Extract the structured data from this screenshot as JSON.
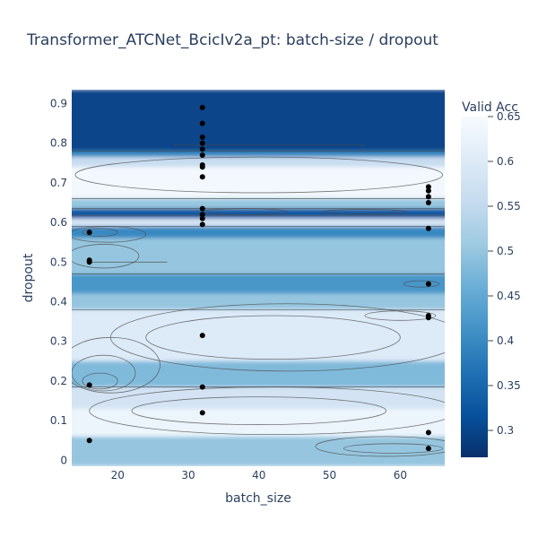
{
  "chart_data": {
    "type": "heatmap",
    "subtype": "contour",
    "title": "Transformer_ATCNet_BcicIv2a_pt: batch-size / dropout",
    "xlabel": "batch_size",
    "ylabel": "dropout",
    "xlim": [
      13.5,
      66.3
    ],
    "ylim": [
      -0.015,
      0.935
    ],
    "x_ticks": [
      20,
      30,
      40,
      50,
      60
    ],
    "x_tick_labels": [
      "20",
      "30",
      "40",
      "50",
      "60"
    ],
    "y_ticks": [
      0,
      0.1,
      0.2,
      0.3,
      0.4,
      0.5,
      0.6,
      0.7,
      0.8,
      0.9
    ],
    "y_tick_labels": [
      "0",
      "0.1",
      "0.2",
      "0.3",
      "0.4",
      "0.5",
      "0.6",
      "0.7",
      "0.8",
      "0.9"
    ],
    "colorbar": {
      "title": "Valid Acc",
      "range": [
        0.27,
        0.65
      ],
      "ticks": [
        0.3,
        0.35,
        0.4,
        0.45,
        0.5,
        0.55,
        0.6,
        0.65
      ],
      "tick_labels": [
        "0.3",
        "0.35",
        "0.4",
        "0.45",
        "0.5",
        "0.55",
        "0.6",
        "0.65"
      ],
      "colorscale": "Blues"
    },
    "bands": [
      {
        "y0": 0.78,
        "y1": 0.935,
        "value": 0.3
      },
      {
        "y0": 0.765,
        "y1": 0.78,
        "value": 0.4
      },
      {
        "y0": 0.74,
        "y1": 0.765,
        "value": 0.56
      },
      {
        "y0": 0.66,
        "y1": 0.74,
        "value": 0.64
      },
      {
        "y0": 0.635,
        "y1": 0.66,
        "value": 0.5
      },
      {
        "y0": 0.61,
        "y1": 0.635,
        "value": 0.33
      },
      {
        "y0": 0.59,
        "y1": 0.61,
        "value": 0.58
      },
      {
        "y0": 0.56,
        "y1": 0.59,
        "value": 0.4
      },
      {
        "y0": 0.47,
        "y1": 0.56,
        "value": 0.5
      },
      {
        "y0": 0.42,
        "y1": 0.47,
        "value": 0.42
      },
      {
        "y0": 0.38,
        "y1": 0.42,
        "value": 0.5
      },
      {
        "y0": 0.25,
        "y1": 0.38,
        "value": 0.6
      },
      {
        "y0": 0.185,
        "y1": 0.25,
        "value": 0.48
      },
      {
        "y0": 0.13,
        "y1": 0.185,
        "value": 0.58
      },
      {
        "y0": 0.06,
        "y1": 0.13,
        "value": 0.63
      },
      {
        "y0": -0.015,
        "y1": 0.06,
        "value": 0.5
      }
    ],
    "points": [
      {
        "x": 32,
        "y": 0.89
      },
      {
        "x": 32,
        "y": 0.85
      },
      {
        "x": 32,
        "y": 0.815
      },
      {
        "x": 32,
        "y": 0.8
      },
      {
        "x": 32,
        "y": 0.785
      },
      {
        "x": 32,
        "y": 0.77
      },
      {
        "x": 32,
        "y": 0.745
      },
      {
        "x": 32,
        "y": 0.74
      },
      {
        "x": 32,
        "y": 0.715
      },
      {
        "x": 32,
        "y": 0.635
      },
      {
        "x": 32,
        "y": 0.62
      },
      {
        "x": 32,
        "y": 0.61
      },
      {
        "x": 32,
        "y": 0.595
      },
      {
        "x": 32,
        "y": 0.315
      },
      {
        "x": 32,
        "y": 0.185
      },
      {
        "x": 32,
        "y": 0.12
      },
      {
        "x": 16,
        "y": 0.575
      },
      {
        "x": 16,
        "y": 0.505
      },
      {
        "x": 16,
        "y": 0.5
      },
      {
        "x": 16,
        "y": 0.19
      },
      {
        "x": 16,
        "y": 0.05
      },
      {
        "x": 64,
        "y": 0.69
      },
      {
        "x": 64,
        "y": 0.68
      },
      {
        "x": 64,
        "y": 0.665
      },
      {
        "x": 64,
        "y": 0.65
      },
      {
        "x": 64,
        "y": 0.585
      },
      {
        "x": 64,
        "y": 0.445
      },
      {
        "x": 64,
        "y": 0.365
      },
      {
        "x": 64,
        "y": 0.36
      },
      {
        "x": 64,
        "y": 0.07
      },
      {
        "x": 64,
        "y": 0.03
      }
    ],
    "contour_lines": [
      {
        "type": "hline",
        "y": 0.795,
        "x0": 28,
        "x1": 55
      },
      {
        "type": "hline",
        "y": 0.78,
        "x0": 13.5,
        "x1": 66.3
      },
      {
        "type": "hline",
        "y": 0.66,
        "x0": 13.5,
        "x1": 66.3
      },
      {
        "type": "hline",
        "y": 0.635,
        "x0": 13.5,
        "x1": 66.3
      },
      {
        "type": "hline",
        "y": 0.618,
        "x0": 13.5,
        "x1": 66.3
      },
      {
        "type": "hline",
        "y": 0.59,
        "x0": 13.5,
        "x1": 66.3
      },
      {
        "type": "hline",
        "y": 0.47,
        "x0": 13.5,
        "x1": 66.3
      },
      {
        "type": "hline",
        "y": 0.38,
        "x0": 13.5,
        "x1": 66.3
      },
      {
        "type": "hline",
        "y": 0.185,
        "x0": 13.5,
        "x1": 66.3
      },
      {
        "type": "hline",
        "y": 0.5,
        "x0": 16,
        "x1": 27
      },
      {
        "type": "ellipse",
        "cx": 40,
        "cy": 0.72,
        "rx": 26,
        "ry": 0.045
      },
      {
        "type": "ellipse",
        "cx": 42,
        "cy": 0.31,
        "rx": 18,
        "ry": 0.055
      },
      {
        "type": "ellipse",
        "cx": 44,
        "cy": 0.31,
        "rx": 25,
        "ry": 0.085
      },
      {
        "type": "ellipse",
        "cx": 40,
        "cy": 0.125,
        "rx": 18,
        "ry": 0.035
      },
      {
        "type": "ellipse",
        "cx": 42,
        "cy": 0.125,
        "rx": 26,
        "ry": 0.06
      },
      {
        "type": "ellipse",
        "cx": 17.5,
        "cy": 0.2,
        "rx": 2.5,
        "ry": 0.02
      },
      {
        "type": "ellipse",
        "cx": 18,
        "cy": 0.22,
        "rx": 4.5,
        "ry": 0.045
      },
      {
        "type": "ellipse",
        "cx": 19,
        "cy": 0.24,
        "rx": 7,
        "ry": 0.07
      },
      {
        "type": "ellipse",
        "cx": 18,
        "cy": 0.515,
        "rx": 5,
        "ry": 0.03
      },
      {
        "type": "ellipse",
        "cx": 17.5,
        "cy": 0.575,
        "rx": 2.5,
        "ry": 0.01
      },
      {
        "type": "ellipse",
        "cx": 18.5,
        "cy": 0.57,
        "rx": 5.5,
        "ry": 0.02
      },
      {
        "type": "ellipse",
        "cx": 60,
        "cy": 0.365,
        "rx": 5,
        "ry": 0.012
      },
      {
        "type": "ellipse",
        "cx": 63,
        "cy": 0.445,
        "rx": 2.5,
        "ry": 0.008
      },
      {
        "type": "ellipse",
        "cx": 59,
        "cy": 0.03,
        "rx": 7,
        "ry": 0.012
      },
      {
        "type": "ellipse",
        "cx": 58,
        "cy": 0.035,
        "rx": 10,
        "ry": 0.025
      },
      {
        "type": "ellipse",
        "cx": 38,
        "cy": 0.627,
        "rx": 6,
        "ry": 0.008
      },
      {
        "type": "ellipse",
        "cx": 55,
        "cy": 0.627,
        "rx": 6,
        "ry": 0.006
      }
    ]
  }
}
